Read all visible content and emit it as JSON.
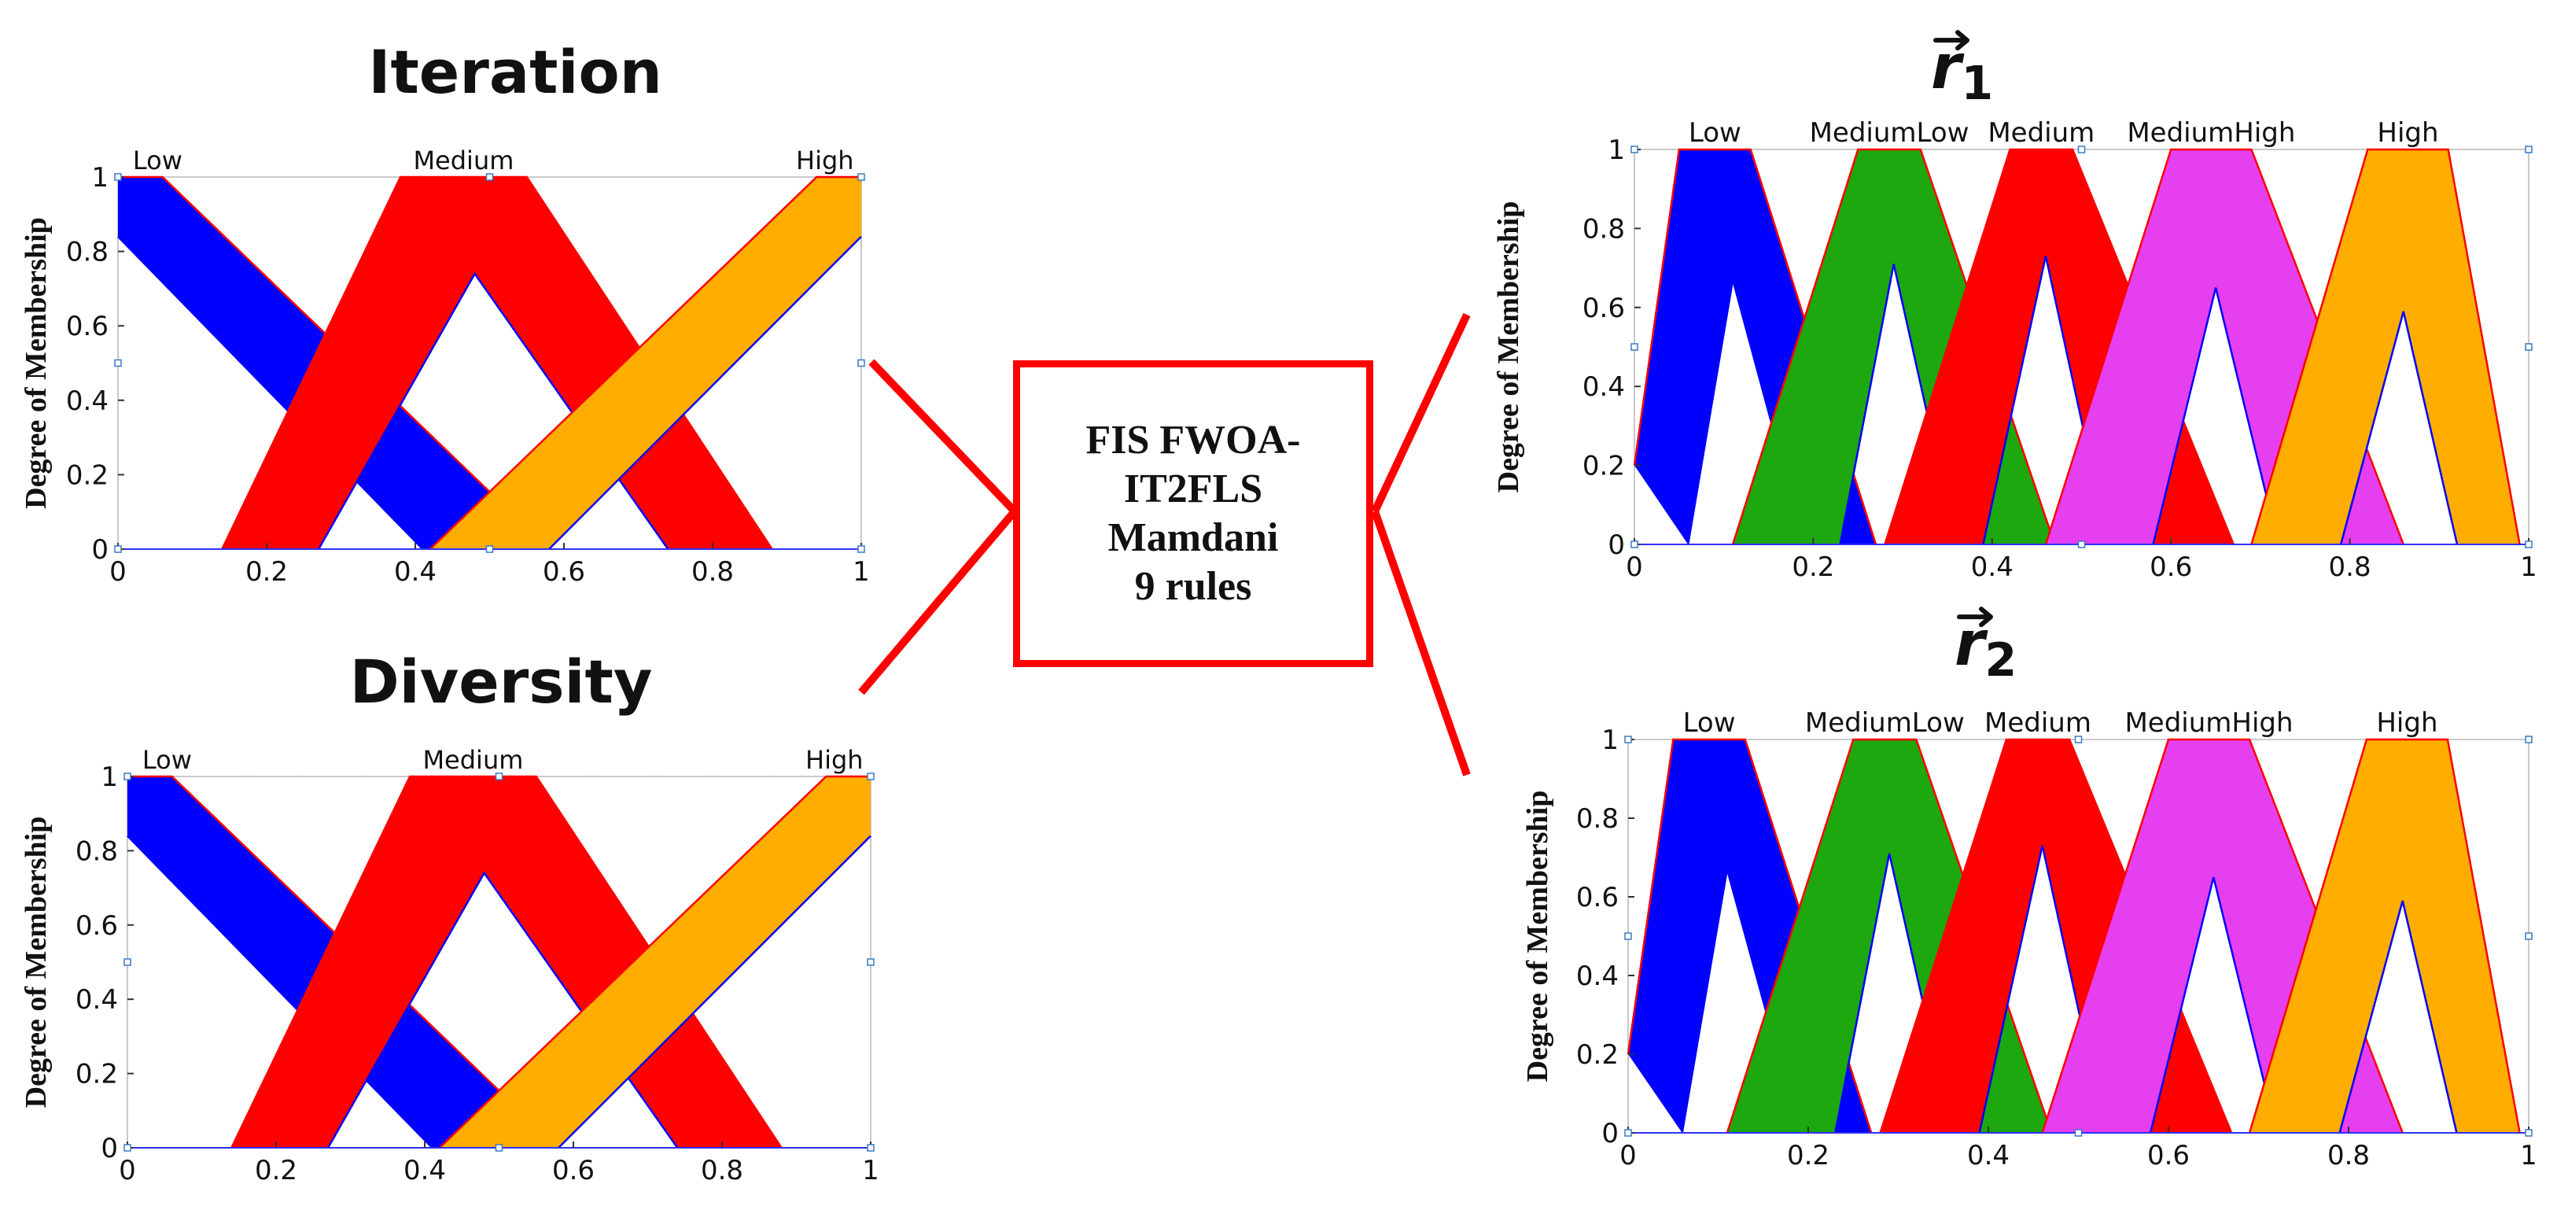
{
  "fis": {
    "line1": "FIS FWOA-",
    "line2": "IT2FLS",
    "line3": "Mamdani",
    "line4": "9 rules"
  },
  "y_axis_label": "Degree of Membership",
  "colors": {
    "low": "#0000ff",
    "medium": "#ff0000",
    "high": "#ffad00",
    "medium_low": "#1ca80e",
    "medium_high": "#e63ff0",
    "connector": "#ff0000",
    "axis": "#999999",
    "outline_upper": "#ff0000",
    "outline_lower": "#0000ff"
  },
  "chart_data": [
    {
      "id": "iteration",
      "type": "area",
      "title": "Iteration",
      "xlabel": "",
      "ylabel": "Degree of Membership",
      "xlim": [
        0,
        1
      ],
      "ylim": [
        0,
        1
      ],
      "x_ticks": [
        "0",
        "0.2",
        "0.4",
        "0.6",
        "0.8",
        "1"
      ],
      "y_ticks": [
        "0",
        "0.2",
        "0.4",
        "0.6",
        "0.8",
        "1"
      ],
      "series": [
        {
          "name": "Low",
          "color": "#0000ff",
          "upper": [
            [
              0,
              1
            ],
            [
              0.06,
              1
            ],
            [
              0.58,
              0
            ]
          ],
          "lower": [
            [
              0,
              0.84
            ],
            [
              0.41,
              0
            ]
          ]
        },
        {
          "name": "Medium",
          "color": "#ff0000",
          "upper": [
            [
              0.14,
              0
            ],
            [
              0.38,
              1
            ],
            [
              0.55,
              1
            ],
            [
              0.88,
              0
            ]
          ],
          "lower": [
            [
              0.27,
              0
            ],
            [
              0.48,
              0.74
            ],
            [
              0.74,
              0
            ]
          ]
        },
        {
          "name": "High",
          "color": "#ffad00",
          "upper": [
            [
              0.42,
              0
            ],
            [
              0.94,
              1
            ],
            [
              1,
              1
            ]
          ],
          "lower": [
            [
              0.58,
              0
            ],
            [
              1,
              0.84
            ]
          ]
        }
      ]
    },
    {
      "id": "diversity",
      "type": "area",
      "title": "Diversity",
      "xlabel": "",
      "ylabel": "Degree of Membership",
      "xlim": [
        0,
        1
      ],
      "ylim": [
        0,
        1
      ],
      "x_ticks": [
        "0",
        "0.2",
        "0.4",
        "0.6",
        "0.8",
        "1"
      ],
      "y_ticks": [
        "0",
        "0.2",
        "0.4",
        "0.6",
        "0.8",
        "1"
      ],
      "series": [
        {
          "name": "Low",
          "color": "#0000ff",
          "upper": [
            [
              0,
              1
            ],
            [
              0.06,
              1
            ],
            [
              0.58,
              0
            ]
          ],
          "lower": [
            [
              0,
              0.84
            ],
            [
              0.41,
              0
            ]
          ]
        },
        {
          "name": "Medium",
          "color": "#ff0000",
          "upper": [
            [
              0.14,
              0
            ],
            [
              0.38,
              1
            ],
            [
              0.55,
              1
            ],
            [
              0.88,
              0
            ]
          ],
          "lower": [
            [
              0.27,
              0
            ],
            [
              0.48,
              0.74
            ],
            [
              0.74,
              0
            ]
          ]
        },
        {
          "name": "High",
          "color": "#ffad00",
          "upper": [
            [
              0.42,
              0
            ],
            [
              0.94,
              1
            ],
            [
              1,
              1
            ]
          ],
          "lower": [
            [
              0.58,
              0
            ],
            [
              1,
              0.84
            ]
          ]
        }
      ]
    },
    {
      "id": "r1",
      "type": "area",
      "title": "r1",
      "title_letter": "r",
      "title_sub": "1",
      "xlabel": "",
      "ylabel": "Degree of Membership",
      "xlim": [
        0,
        1
      ],
      "ylim": [
        0,
        1
      ],
      "x_ticks": [
        "0",
        "0.2",
        "0.4",
        "0.6",
        "0.8",
        "1"
      ],
      "y_ticks": [
        "0",
        "0.2",
        "0.4",
        "0.6",
        "0.8",
        "1"
      ],
      "series": [
        {
          "name": "Low",
          "color": "#0000ff",
          "upper": [
            [
              0,
              0.2
            ],
            [
              0.05,
              1
            ],
            [
              0.13,
              1
            ],
            [
              0.27,
              0
            ]
          ],
          "lower": [
            [
              0.06,
              0
            ],
            [
              0.11,
              0.67
            ],
            [
              0.19,
              0
            ]
          ]
        },
        {
          "name": "MediumLow",
          "color": "#1ca80e",
          "upper": [
            [
              0.11,
              0
            ],
            [
              0.25,
              1
            ],
            [
              0.32,
              1
            ],
            [
              0.47,
              0
            ]
          ],
          "lower": [
            [
              0.23,
              0
            ],
            [
              0.29,
              0.71
            ],
            [
              0.36,
              0
            ]
          ]
        },
        {
          "name": "Medium",
          "color": "#ff0000",
          "upper": [
            [
              0.28,
              0
            ],
            [
              0.42,
              1
            ],
            [
              0.49,
              1
            ],
            [
              0.67,
              0
            ]
          ],
          "lower": [
            [
              0.39,
              0
            ],
            [
              0.46,
              0.73
            ],
            [
              0.53,
              0
            ]
          ]
        },
        {
          "name": "MediumHigh",
          "color": "#e63ff0",
          "upper": [
            [
              0.46,
              0
            ],
            [
              0.6,
              1
            ],
            [
              0.69,
              1
            ],
            [
              0.86,
              0
            ]
          ],
          "lower": [
            [
              0.58,
              0
            ],
            [
              0.65,
              0.65
            ],
            [
              0.72,
              0
            ]
          ]
        },
        {
          "name": "High",
          "color": "#ffad00",
          "upper": [
            [
              0.69,
              0
            ],
            [
              0.82,
              1
            ],
            [
              0.91,
              1
            ],
            [
              0.99,
              0
            ]
          ],
          "lower": [
            [
              0.79,
              0
            ],
            [
              0.86,
              0.59
            ],
            [
              0.92,
              0
            ]
          ]
        }
      ]
    },
    {
      "id": "r2",
      "type": "area",
      "title": "r2",
      "title_letter": "r",
      "title_sub": "2",
      "xlabel": "",
      "ylabel": "Degree of Membership",
      "xlim": [
        0,
        1
      ],
      "ylim": [
        0,
        1
      ],
      "x_ticks": [
        "0",
        "0.2",
        "0.4",
        "0.6",
        "0.8",
        "1"
      ],
      "y_ticks": [
        "0",
        "0.2",
        "0.4",
        "0.6",
        "0.8",
        "1"
      ],
      "series": [
        {
          "name": "Low",
          "color": "#0000ff",
          "upper": [
            [
              0,
              0.2
            ],
            [
              0.05,
              1
            ],
            [
              0.13,
              1
            ],
            [
              0.27,
              0
            ]
          ],
          "lower": [
            [
              0.06,
              0
            ],
            [
              0.11,
              0.67
            ],
            [
              0.19,
              0
            ]
          ]
        },
        {
          "name": "MediumLow",
          "color": "#1ca80e",
          "upper": [
            [
              0.11,
              0
            ],
            [
              0.25,
              1
            ],
            [
              0.32,
              1
            ],
            [
              0.47,
              0
            ]
          ],
          "lower": [
            [
              0.23,
              0
            ],
            [
              0.29,
              0.71
            ],
            [
              0.36,
              0
            ]
          ]
        },
        {
          "name": "Medium",
          "color": "#ff0000",
          "upper": [
            [
              0.28,
              0
            ],
            [
              0.42,
              1
            ],
            [
              0.49,
              1
            ],
            [
              0.67,
              0
            ]
          ],
          "lower": [
            [
              0.39,
              0
            ],
            [
              0.46,
              0.73
            ],
            [
              0.53,
              0
            ]
          ]
        },
        {
          "name": "MediumHigh",
          "color": "#e63ff0",
          "upper": [
            [
              0.46,
              0
            ],
            [
              0.6,
              1
            ],
            [
              0.69,
              1
            ],
            [
              0.86,
              0
            ]
          ],
          "lower": [
            [
              0.58,
              0
            ],
            [
              0.65,
              0.65
            ],
            [
              0.72,
              0
            ]
          ]
        },
        {
          "name": "High",
          "color": "#ffad00",
          "upper": [
            [
              0.69,
              0
            ],
            [
              0.82,
              1
            ],
            [
              0.91,
              1
            ],
            [
              0.99,
              0
            ]
          ],
          "lower": [
            [
              0.79,
              0
            ],
            [
              0.86,
              0.59
            ],
            [
              0.92,
              0
            ]
          ]
        }
      ]
    }
  ]
}
